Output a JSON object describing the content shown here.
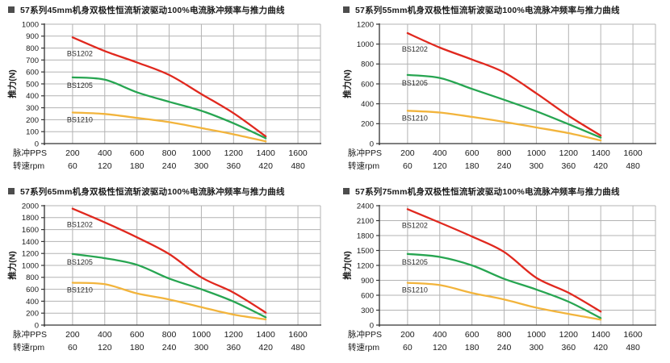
{
  "page": {
    "background": "#ffffff"
  },
  "colors": {
    "red": "#e0281e",
    "green": "#27a551",
    "yellow": "#f2b43c",
    "grid": "#b3b3b3",
    "axis": "#333333",
    "text": "#1a1a1a",
    "series_label": "#2b2b2b",
    "title_square": "#4d4d4d"
  },
  "chart_data": [
    {
      "type": "line",
      "title": "57系列45mm机身双极性恒流斩波驱动100%电流脉冲频率与推力曲线",
      "ylabel": "推力(N)",
      "x_header_pps": "脉冲PPS",
      "x_header_rpm": "转速rpm",
      "x_ticks_pps": [
        200,
        400,
        600,
        800,
        1000,
        1200,
        1400,
        1600
      ],
      "x_ticks_rpm": [
        60,
        120,
        180,
        240,
        300,
        360,
        420,
        480
      ],
      "x": [
        200,
        400,
        600,
        800,
        1000,
        1200,
        1400
      ],
      "ylim": [
        0,
        1000
      ],
      "ystep": 100,
      "grid": true,
      "legend_position": "inline-labels",
      "series": [
        {
          "name": "BS1202",
          "color": "red",
          "values": [
            890,
            775,
            680,
            575,
            415,
            255,
            60
          ]
        },
        {
          "name": "BS1205",
          "color": "green",
          "values": [
            555,
            535,
            430,
            350,
            275,
            170,
            45
          ]
        },
        {
          "name": "BS1210",
          "color": "yellow",
          "values": [
            260,
            248,
            215,
            180,
            130,
            78,
            18
          ]
        }
      ]
    },
    {
      "type": "line",
      "title": "57系列55mm机身双极性恒流斩波驱动100%电流脉冲频率与推力曲线",
      "ylabel": "推力(N)",
      "x_header_pps": "脉冲PPS",
      "x_header_rpm": "转速rpm",
      "x_ticks_pps": [
        200,
        400,
        600,
        800,
        1000,
        1200,
        1400,
        1600
      ],
      "x_ticks_rpm": [
        60,
        120,
        180,
        240,
        300,
        360,
        420,
        480
      ],
      "x": [
        200,
        400,
        600,
        800,
        1000,
        1200,
        1400
      ],
      "ylim": [
        0,
        1200
      ],
      "ystep": 200,
      "grid": true,
      "legend_position": "inline-labels",
      "series": [
        {
          "name": "BS1202",
          "color": "red",
          "values": [
            1110,
            965,
            845,
            715,
            505,
            280,
            80
          ]
        },
        {
          "name": "BS1205",
          "color": "green",
          "values": [
            690,
            660,
            550,
            440,
            325,
            195,
            60
          ]
        },
        {
          "name": "BS1210",
          "color": "yellow",
          "values": [
            330,
            312,
            268,
            218,
            162,
            105,
            32
          ]
        }
      ]
    },
    {
      "type": "line",
      "title": "57系列65mm机身双极性恒流斩波驱动100%电流脉冲频率与推力曲线",
      "ylabel": "推力(N)",
      "x_header_pps": "脉冲PPS",
      "x_header_rpm": "转速rpm",
      "x_ticks_pps": [
        200,
        400,
        600,
        800,
        1000,
        1200,
        1400,
        1600
      ],
      "x_ticks_rpm": [
        60,
        120,
        180,
        240,
        300,
        360,
        420,
        480
      ],
      "x": [
        200,
        400,
        600,
        800,
        1000,
        1200,
        1400
      ],
      "ylim": [
        0,
        2000
      ],
      "ystep": 200,
      "grid": true,
      "legend_position": "inline-labels",
      "series": [
        {
          "name": "BS1202",
          "color": "red",
          "values": [
            1950,
            1720,
            1470,
            1190,
            800,
            545,
            210
          ]
        },
        {
          "name": "BS1205",
          "color": "green",
          "values": [
            1190,
            1120,
            1010,
            780,
            600,
            395,
            130
          ]
        },
        {
          "name": "BS1210",
          "color": "yellow",
          "values": [
            710,
            685,
            530,
            430,
            300,
            175,
            95
          ]
        }
      ]
    },
    {
      "type": "line",
      "title": "57系列75mm机身双极性恒流斩波驱动100%电流脉冲频率与推力曲线",
      "ylabel": "推力(N)",
      "x_header_pps": "脉冲PPS",
      "x_header_rpm": "转速rpm",
      "x_ticks_pps": [
        200,
        400,
        600,
        800,
        1000,
        1200,
        1400,
        1600
      ],
      "x_ticks_rpm": [
        60,
        120,
        180,
        240,
        300,
        360,
        420,
        480
      ],
      "x": [
        200,
        400,
        600,
        800,
        1000,
        1200,
        1400
      ],
      "ylim": [
        0,
        2400
      ],
      "ystep": 300,
      "grid": true,
      "legend_position": "inline-labels",
      "series": [
        {
          "name": "BS1202",
          "color": "red",
          "values": [
            2330,
            2060,
            1780,
            1470,
            950,
            650,
            270
          ]
        },
        {
          "name": "BS1205",
          "color": "green",
          "values": [
            1430,
            1370,
            1200,
            930,
            715,
            470,
            140
          ]
        },
        {
          "name": "BS1210",
          "color": "yellow",
          "values": [
            850,
            805,
            645,
            515,
            350,
            225,
            110
          ]
        }
      ]
    }
  ]
}
